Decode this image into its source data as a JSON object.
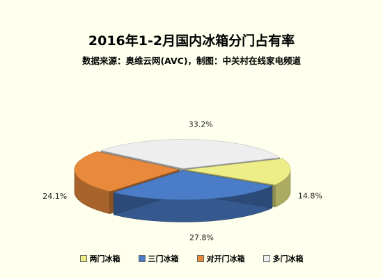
{
  "chart_data": {
    "type": "pie",
    "title": "2016年1-2月国内冰箱分门占有率",
    "subtitle": "数据来源：奥维云网(AVC)，制图：中关村在线家电频道",
    "categories": [
      "两门冰箱",
      "三门冰箱",
      "对开门冰箱",
      "多门冰箱"
    ],
    "values": [
      14.8,
      27.8,
      24.1,
      33.2
    ],
    "labels": [
      "14.8%",
      "27.8%",
      "24.1%",
      "33.2%"
    ],
    "colors": [
      "#EEEE88",
      "#4A7CC7",
      "#E8893C",
      "#EEEEEE"
    ],
    "legend": "bottom"
  }
}
